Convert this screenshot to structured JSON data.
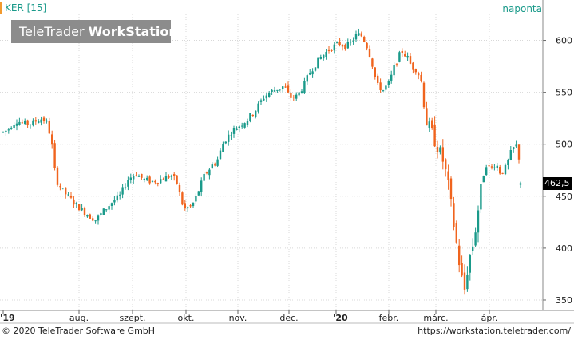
{
  "header": {
    "ticker_label": "KER [15]",
    "interval_label": "naponta"
  },
  "logo": {
    "brand_regular": "TeleTrader",
    "brand_bold": "WorkStation"
  },
  "footer": {
    "copyright": "© 2020 TeleTrader Software GmbH",
    "url": "https://workstation.teletrader.com/"
  },
  "colors": {
    "up": "#1a9a8a",
    "down": "#f0641e",
    "grid": "#d8d8d8",
    "last_price_label_bg": "#000000"
  },
  "chart_data": {
    "type": "candlestick",
    "title": "",
    "xlabel": "",
    "ylabel": "",
    "ylim": [
      340,
      625
    ],
    "y_ticks": [
      350,
      400,
      450,
      500,
      550,
      600
    ],
    "y_tick_labels": [
      "350",
      "400",
      "450",
      "500",
      "550",
      "600"
    ],
    "x_tick_labels": [
      "'19",
      "aug.",
      "szept.",
      "okt.",
      "nov.",
      "dec.",
      "'20",
      "febr.",
      "márc.",
      "ápr."
    ],
    "last_price_label": "462,5",
    "grid": true,
    "anchors": [
      [
        0,
        510
      ],
      [
        10,
        514
      ],
      [
        20,
        523
      ],
      [
        30,
        520
      ],
      [
        40,
        520
      ],
      [
        50,
        525
      ],
      [
        58,
        522
      ],
      [
        64,
        506
      ],
      [
        70,
        466
      ],
      [
        80,
        454
      ],
      [
        95,
        442
      ],
      [
        110,
        432
      ],
      [
        120,
        427
      ],
      [
        130,
        436
      ],
      [
        140,
        444
      ],
      [
        150,
        450
      ],
      [
        160,
        466
      ],
      [
        170,
        472
      ],
      [
        180,
        466
      ],
      [
        190,
        464
      ],
      [
        200,
        466
      ],
      [
        215,
        470
      ],
      [
        222,
        462
      ],
      [
        230,
        438
      ],
      [
        240,
        440
      ],
      [
        246,
        450
      ],
      [
        256,
        470
      ],
      [
        266,
        480
      ],
      [
        272,
        484
      ],
      [
        280,
        502
      ],
      [
        290,
        512
      ],
      [
        300,
        518
      ],
      [
        310,
        524
      ],
      [
        320,
        533
      ],
      [
        330,
        545
      ],
      [
        338,
        550
      ],
      [
        346,
        553
      ],
      [
        356,
        556
      ],
      [
        363,
        545
      ],
      [
        372,
        546
      ],
      [
        380,
        556
      ],
      [
        388,
        569
      ],
      [
        395,
        577
      ],
      [
        405,
        586
      ],
      [
        415,
        593
      ],
      [
        425,
        597
      ],
      [
        433,
        594
      ],
      [
        440,
        598
      ],
      [
        447,
        606
      ],
      [
        454,
        604
      ],
      [
        461,
        592
      ],
      [
        466,
        578
      ],
      [
        472,
        557
      ],
      [
        480,
        552
      ],
      [
        488,
        560
      ],
      [
        495,
        577
      ],
      [
        503,
        590
      ],
      [
        510,
        584
      ],
      [
        516,
        574
      ],
      [
        522,
        572
      ],
      [
        528,
        560
      ],
      [
        534,
        522
      ],
      [
        540,
        512
      ],
      [
        548,
        498
      ],
      [
        556,
        482
      ],
      [
        562,
        458
      ],
      [
        568,
        425
      ],
      [
        573,
        398
      ],
      [
        578,
        372
      ],
      [
        582,
        360
      ],
      [
        587,
        388
      ],
      [
        592,
        402
      ],
      [
        597,
        425
      ],
      [
        603,
        463
      ],
      [
        609,
        481
      ],
      [
        615,
        476
      ],
      [
        621,
        482
      ],
      [
        627,
        472
      ],
      [
        634,
        478
      ],
      [
        640,
        492
      ],
      [
        646,
        500
      ],
      [
        650,
        487
      ]
    ],
    "last_candle": {
      "open": 461,
      "close": 462.5,
      "high": 464,
      "low": 458
    },
    "volatility_note_free": true
  }
}
